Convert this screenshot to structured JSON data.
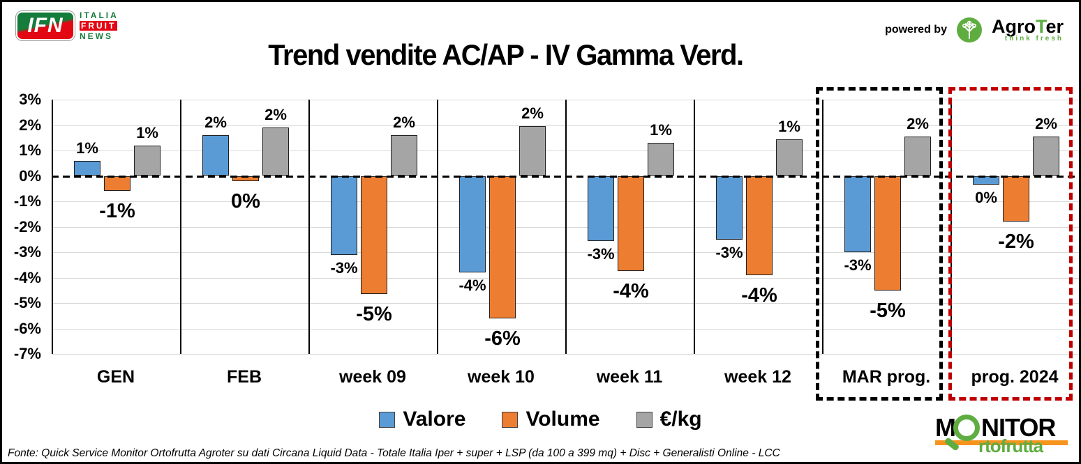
{
  "frame": {
    "background": "#FFFFFF",
    "border_color": "#000000"
  },
  "header": {
    "title": "Trend vendite AC/AP - IV Gamma Verd.",
    "ifn_logo": {
      "abbr": "IFN",
      "line1": "ITALIA",
      "line2": "FRUIT",
      "line3": "NEWS",
      "green": "#157C3B",
      "red": "#E30613"
    },
    "powered_by": "powered by",
    "agroter_logo": {
      "name_prefix": "Agro",
      "name_t": "T",
      "name_suffix": "er",
      "tagline": "think fresh",
      "green": "#5FAD41"
    }
  },
  "chart_data": {
    "type": "bar",
    "title": "Trend vendite AC/AP - IV Gamma Verd.",
    "categories": [
      "GEN",
      "FEB",
      "week 09",
      "week 10",
      "week 11",
      "week 12",
      "MAR prog.",
      "prog. 2024"
    ],
    "series": [
      {
        "name": "Valore",
        "color": "#5B9BD5",
        "values": [
          0.6,
          1.6,
          -3.1,
          -3.8,
          -2.55,
          -2.5,
          -3.0,
          -0.35
        ],
        "labels": [
          "1%",
          "2%",
          "-3%",
          "-4%",
          "-3%",
          "-3%",
          "-3%",
          "0%"
        ]
      },
      {
        "name": "Volume",
        "color": "#ED7D31",
        "values": [
          -0.6,
          -0.2,
          -4.65,
          -5.6,
          -3.75,
          -3.9,
          -4.5,
          -1.8
        ],
        "labels": [
          "-1%",
          "0%",
          "-5%",
          "-6%",
          "-4%",
          "-4%",
          "-5%",
          "-2%"
        ]
      },
      {
        "name": "€/kg",
        "color": "#A5A5A5",
        "values": [
          1.2,
          1.9,
          1.6,
          1.95,
          1.3,
          1.45,
          1.55,
          1.55
        ],
        "labels": [
          "1%",
          "2%",
          "2%",
          "2%",
          "1%",
          "1%",
          "2%",
          "2%"
        ]
      }
    ],
    "ylim": [
      -7,
      3
    ],
    "yticks": [
      3,
      2,
      1,
      0,
      -1,
      -2,
      -3,
      -4,
      -5,
      -6,
      -7
    ],
    "ytick_labels": [
      "3%",
      "2%",
      "1%",
      "0%",
      "-1%",
      "-2%",
      "-3%",
      "-4%",
      "-5%",
      "-6%",
      "-7%"
    ],
    "zero_line": "dashed",
    "grid": true,
    "legend_position": "bottom",
    "highlights": [
      {
        "category": "MAR prog.",
        "index": 6,
        "color": "#000000",
        "style": "dashed"
      },
      {
        "category": "prog. 2024",
        "index": 7,
        "color": "#C00000",
        "style": "dashed"
      }
    ]
  },
  "footer": {
    "source": "Fonte: Quick Service Monitor Ortofrutta Agroter su dati Circana Liquid Data - Totale Italia Iper + super + LSP (da 100 a 399 mq) + Disc + Generalisti Online - LCC",
    "monitor_logo": {
      "m": "M",
      "nitor": "NITOR",
      "sub": "rtofrutta",
      "green": "#5FAD41",
      "orange": "#F7941E"
    }
  }
}
